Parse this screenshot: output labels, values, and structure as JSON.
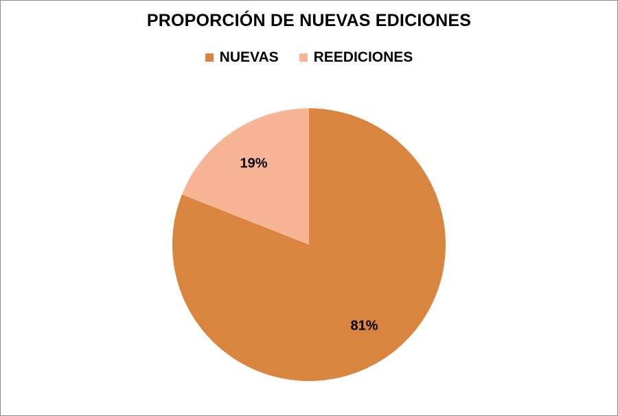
{
  "chart_data": {
    "type": "pie",
    "title": "PROPORCIÓN DE NUEVAS EDICIONES",
    "legend_position": "top",
    "categories": [
      "NUEVAS",
      "REEDICIONES"
    ],
    "values": [
      81,
      19
    ],
    "value_labels": [
      "81%",
      "19%"
    ],
    "colors": [
      "#D9843F",
      "#F8B595"
    ]
  }
}
